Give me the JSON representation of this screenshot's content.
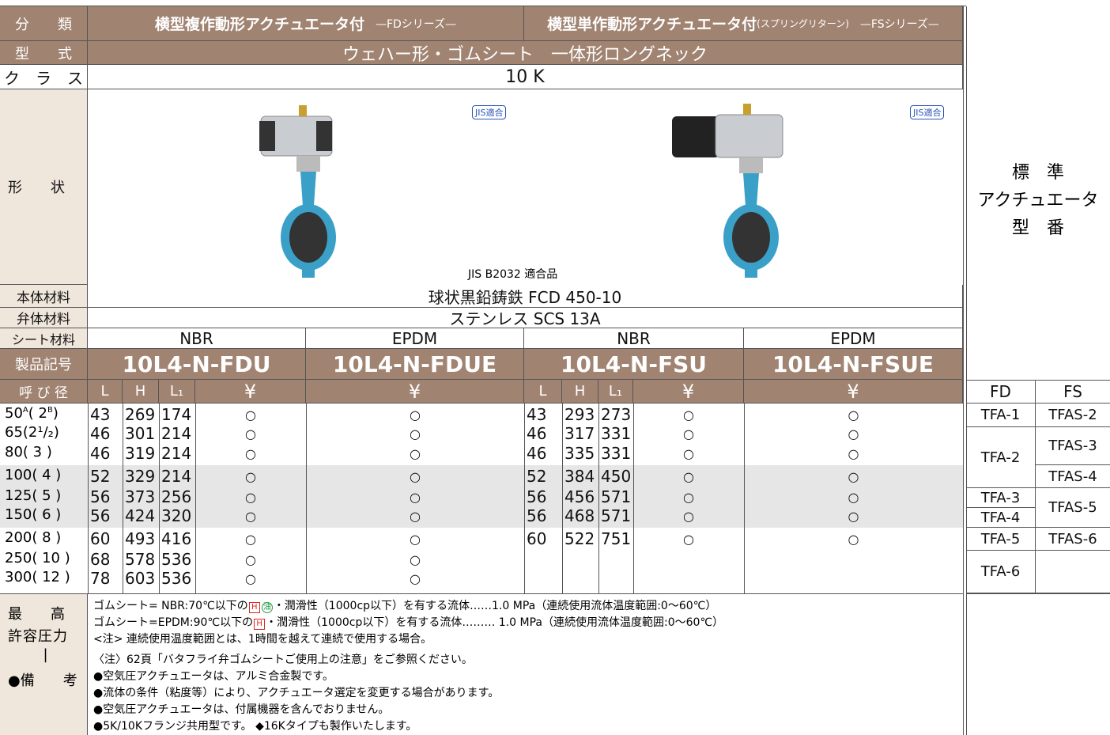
{
  "header": {
    "classification_label": "分　　類",
    "fd_title": "横型複作動形アクチュエータ付",
    "fd_series": "—FDシリーズ—",
    "fs_title": "横型単作動形アクチュエータ付",
    "fs_note": "(スプリングリターン)",
    "fs_series": "—FSシリーズ—"
  },
  "specs": {
    "model_label": "型　　式",
    "model": "ウェハー形・ゴムシート　一体形ロングネック",
    "class_label": "ク　ラ　ス",
    "class": "10 K",
    "shape_label": "形　　状",
    "jis_badges": [
      "JIS適合",
      "JIS適合"
    ],
    "jis_note": "JIS B2032 適合品",
    "body_label": "本体材料",
    "body": "球状黒鉛鋳鉄 FCD 450-10",
    "disc_label": "弁体材料",
    "disc": "ステンレス SCS 13A",
    "seat_label": "シート材料",
    "seats": [
      "NBR",
      "EPDM",
      "NBR",
      "EPDM"
    ],
    "code_label": "製品記号",
    "codes": [
      "10L4-N-FDU",
      "10L4-N-FDUE",
      "10L4-N-FSU",
      "10L4-N-FSUE"
    ]
  },
  "actuator_header": {
    "lines": [
      "標　準",
      "アクチュエータ",
      "型　番"
    ],
    "columns": [
      "FD",
      "FS"
    ]
  },
  "table": {
    "size_label": "呼 び 径",
    "columns": [
      "L",
      "H",
      "L₁",
      "¥",
      "¥",
      "L",
      "H",
      "L₁",
      "¥",
      "¥"
    ],
    "rows": [
      {
        "size": "50",
        "size_unit": "A",
        "inch": "( 2",
        "inch_unit": "B",
        "inch_close": ")",
        "cells": [
          43,
          269,
          174,
          "○",
          "○",
          43,
          293,
          273,
          "○",
          "○"
        ]
      },
      {
        "size": "65",
        "inch": "(2¹/₂)",
        "cells": [
          46,
          301,
          214,
          "○",
          "○",
          46,
          317,
          331,
          "○",
          "○"
        ]
      },
      {
        "size": "80",
        "inch": "( 3 )",
        "cells": [
          46,
          319,
          214,
          "○",
          "○",
          46,
          335,
          331,
          "○",
          "○"
        ]
      },
      {
        "size": "100",
        "inch": "( 4 )",
        "cells": [
          52,
          329,
          214,
          "○",
          "○",
          52,
          384,
          450,
          "○",
          "○"
        ]
      },
      {
        "size": "125",
        "inch": "( 5 )",
        "cells": [
          56,
          373,
          256,
          "○",
          "○",
          56,
          456,
          571,
          "○",
          "○"
        ]
      },
      {
        "size": "150",
        "inch": "( 6 )",
        "cells": [
          56,
          424,
          320,
          "○",
          "○",
          56,
          468,
          571,
          "○",
          "○"
        ]
      },
      {
        "size": "200",
        "inch": "( 8 )",
        "cells": [
          60,
          493,
          416,
          "○",
          "○",
          60,
          522,
          751,
          "○",
          "○"
        ]
      },
      {
        "size": "250",
        "inch": "( 10 )",
        "cells": [
          68,
          578,
          536,
          "○",
          "○",
          null,
          null,
          null,
          null,
          null
        ]
      },
      {
        "size": "300",
        "inch": "( 12 )",
        "cells": [
          78,
          603,
          536,
          "○",
          "○",
          null,
          null,
          null,
          null,
          null
        ]
      }
    ],
    "fd_actuators": [
      "TFA-1",
      "TFA-2",
      "TFA-3",
      "TFA-4",
      "TFA-5",
      "TFA-6"
    ],
    "fs_actuators": [
      "TFAS-2",
      "TFAS-3",
      "TFAS-4",
      "TFAS-5",
      "TFAS-6"
    ]
  },
  "notes": {
    "label_lines": [
      "最　　高",
      "許容圧力",
      "|",
      "●備　　考"
    ],
    "pressure": [
      {
        "before": "ゴムシート= NBR:70℃以下の",
        "icons": [
          "H",
          "油"
        ],
        "after": "・潤滑性（1000cp以下）を有する流体……1.0 MPa（連続使用流体温度範囲:0～60℃）"
      },
      {
        "before": "ゴムシート=EPDM:90℃以下の",
        "icons": [
          "H"
        ],
        "after": "・潤滑性（1000cp以下）を有する流体……… 1.0 MPa（連続使用流体温度範囲:0～60℃）"
      }
    ],
    "remarks": [
      "<注> 連続使用温度範囲とは、1時間を越えて連続で使用する場合。",
      "〈注〉62頁「バタフライ弁ゴムシートご使用上の注意」をご参照ください。",
      "●空気圧アクチュエータは、アルミ合金製です。",
      "●流体の条件（粘度等）により、アクチュエータ選定を変更する場合があります。",
      "●空気圧アクチュエータは、付属機器を含んでおりません。",
      "●5K/10Kフランジ共用型です。 ◆16Kタイプも製作いたします。"
    ]
  }
}
